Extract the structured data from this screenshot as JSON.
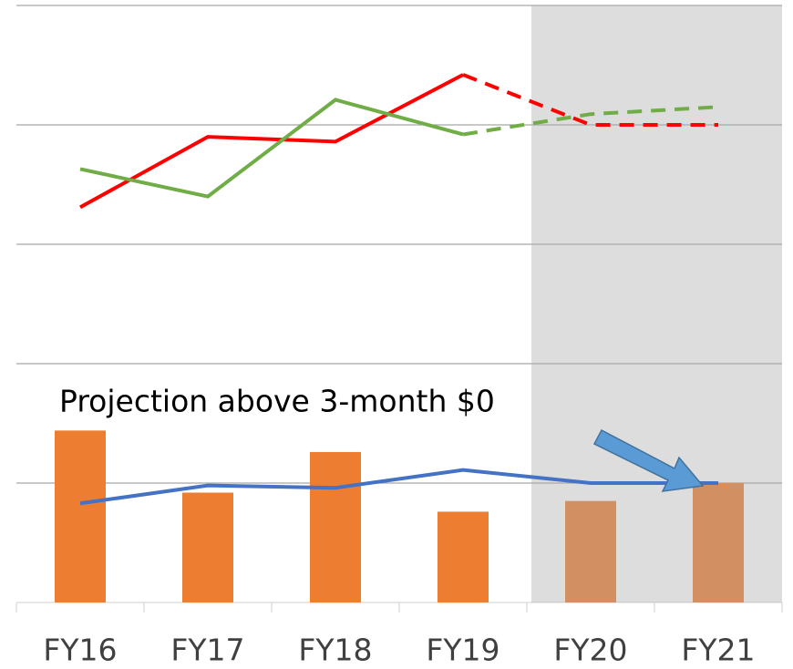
{
  "chart_data": {
    "type": "combo",
    "categories": [
      "FY16",
      "FY17",
      "FY18",
      "FY19",
      "FY20",
      "FY21"
    ],
    "ylim": [
      0,
      5
    ],
    "yticks": [
      0,
      1,
      2,
      3,
      4,
      5
    ],
    "grid": true,
    "annotation": "Projection above 3-month $0",
    "bars": {
      "color": "#ed7d31",
      "values": [
        1.44,
        0.92,
        1.26,
        0.76,
        0.85,
        1.0
      ]
    },
    "lines": [
      {
        "color": "#4472c4",
        "style": "solid",
        "values": [
          0.83,
          0.98,
          0.96,
          1.11,
          1.0,
          1.0
        ]
      },
      {
        "color": "#ff0000",
        "style": "solid",
        "values": [
          3.31,
          3.9,
          3.86,
          4.42,
          null,
          null
        ]
      },
      {
        "color": "#ff0000",
        "style": "dashed",
        "values": [
          null,
          null,
          null,
          4.42,
          4.0,
          4.0
        ]
      },
      {
        "color": "#70ad47",
        "style": "solid",
        "values": [
          3.63,
          3.4,
          4.21,
          3.92,
          null,
          null
        ]
      },
      {
        "color": "#70ad47",
        "style": "dashed",
        "values": [
          null,
          null,
          null,
          3.92,
          4.09,
          4.15
        ]
      }
    ]
  }
}
